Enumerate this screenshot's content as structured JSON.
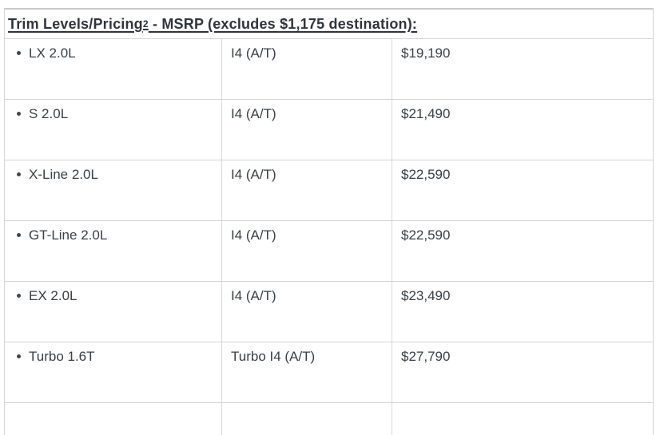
{
  "heading": {
    "title": "Trim Levels/Pricing",
    "footnote": "2",
    "subtitle": " - MSRP (excludes $1,175 destination):"
  },
  "table": {
    "rows": [
      {
        "trim": "LX 2.0L",
        "engine": "I4 (A/T)",
        "price": "$19,190"
      },
      {
        "trim": "S 2.0L",
        "engine": "I4 (A/T)",
        "price": "$21,490"
      },
      {
        "trim": "X-Line 2.0L",
        "engine": "I4 (A/T)",
        "price": "$22,590"
      },
      {
        "trim": "GT-Line 2.0L",
        "engine": "I4 (A/T)",
        "price": "$22,590"
      },
      {
        "trim": "EX 2.0L",
        "engine": "I4 (A/T)",
        "price": "$23,490"
      },
      {
        "trim": "Turbo 1.6T",
        "engine": "Turbo I4 (A/T)",
        "price": "$27,790"
      }
    ]
  },
  "colors": {
    "text": "#394046",
    "heading_text": "#2f353b",
    "border": "#d2d5d8",
    "top_border": "#c9c9c9",
    "background": "#ffffff"
  }
}
